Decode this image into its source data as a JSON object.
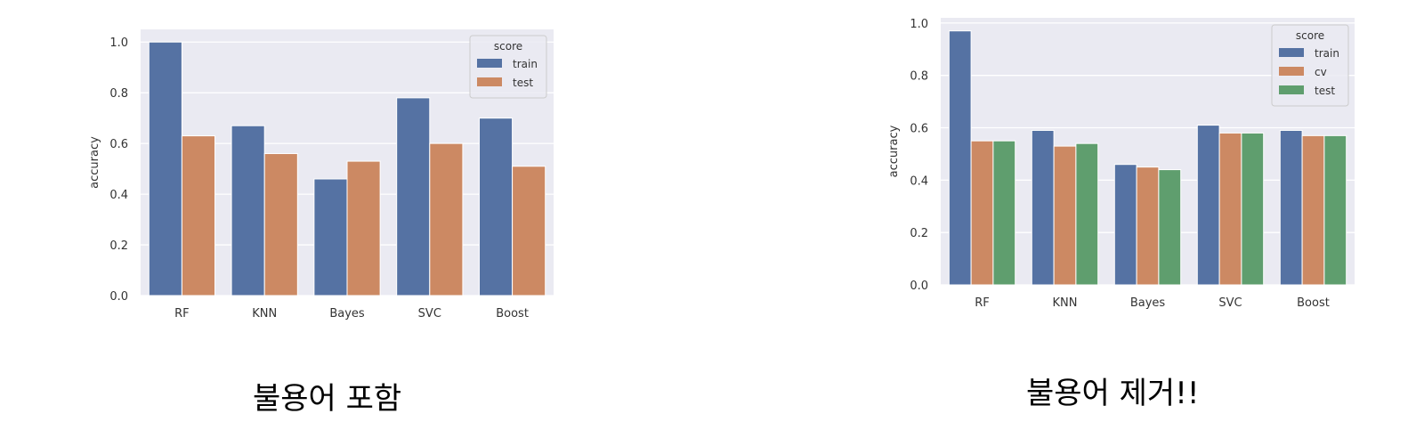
{
  "colors": {
    "train": "#5572a3",
    "cv": "#cc8963",
    "test_left": "#cc8963",
    "test_right": "#5f9e6e",
    "plot_bg": "#eaeaf2",
    "grid": "#ffffff"
  },
  "captions": {
    "left": "불용어 포함",
    "right": "불용어 제거!!"
  },
  "chart_data": [
    {
      "type": "bar",
      "title": "",
      "xlabel": "",
      "ylabel": "accuracy",
      "ylim": [
        0,
        1.05
      ],
      "yticks": [
        "0.0",
        "0.2",
        "0.4",
        "0.6",
        "0.8",
        "1.0"
      ],
      "categories": [
        "RF",
        "KNN",
        "Bayes",
        "SVC",
        "Boost"
      ],
      "legend": {
        "title": "score",
        "placement": "top-right"
      },
      "grid": true,
      "series": [
        {
          "name": "train",
          "values": [
            1.0,
            0.67,
            0.46,
            0.78,
            0.7
          ]
        },
        {
          "name": "test",
          "values": [
            0.63,
            0.56,
            0.53,
            0.6,
            0.51
          ]
        }
      ]
    },
    {
      "type": "bar",
      "title": "",
      "xlabel": "",
      "ylabel": "accuracy",
      "ylim": [
        0,
        1.02
      ],
      "yticks": [
        "0.0",
        "0.2",
        "0.4",
        "0.6",
        "0.8",
        "1.0"
      ],
      "categories": [
        "RF",
        "KNN",
        "Bayes",
        "SVC",
        "Boost"
      ],
      "legend": {
        "title": "score",
        "placement": "top-right"
      },
      "grid": true,
      "series": [
        {
          "name": "train",
          "values": [
            0.97,
            0.59,
            0.46,
            0.61,
            0.59
          ]
        },
        {
          "name": "cv",
          "values": [
            0.55,
            0.53,
            0.45,
            0.58,
            0.57
          ]
        },
        {
          "name": "test",
          "values": [
            0.55,
            0.54,
            0.44,
            0.58,
            0.57
          ]
        }
      ]
    }
  ]
}
